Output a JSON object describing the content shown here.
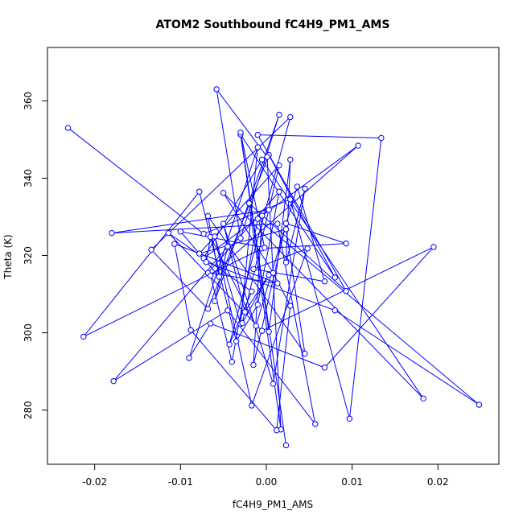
{
  "chart_data": {
    "type": "line",
    "title": "ATOM2 Southbound fC4H9_PM1_AMS",
    "xlabel": "fC4H9_PM1_AMS",
    "ylabel": "Theta (K)",
    "xlim": [
      -0.0255,
      0.0271
    ],
    "ylim": [
      266.0,
      373.8
    ],
    "x_ticks": [
      -0.02,
      -0.01,
      0.0,
      0.01,
      0.02
    ],
    "x_tick_labels": [
      "-0.02",
      "-0.01",
      "0.00",
      "0.01",
      "0.02"
    ],
    "y_ticks": [
      280,
      300,
      320,
      340,
      360
    ],
    "y_tick_labels": [
      "280",
      "300",
      "320",
      "340",
      "360"
    ],
    "grid": false,
    "legend": "none",
    "series_color": "#0000ff",
    "markers": "open-circle",
    "points": [
      {
        "x": -0.0231,
        "y": 353.0
      },
      {
        "x": -0.0058,
        "y": 363.0
      },
      {
        "x": 0.0015,
        "y": 356.4
      },
      {
        "x": 0.0028,
        "y": 355.8
      },
      {
        "x": 0.0134,
        "y": 350.4
      },
      {
        "x": -0.003,
        "y": 351.3
      },
      {
        "x": -0.003,
        "y": 351.8
      },
      {
        "x": -0.001,
        "y": 351.2
      },
      {
        "x": 0.0107,
        "y": 348.4
      },
      {
        "x": -0.001,
        "y": 348.0
      },
      {
        "x": 0.0003,
        "y": 346.0
      },
      {
        "x": 0.0001,
        "y": 345.5
      },
      {
        "x": -0.0005,
        "y": 344.8
      },
      {
        "x": 0.0028,
        "y": 344.8
      },
      {
        "x": 0.0015,
        "y": 343.3
      },
      {
        "x": 0.0036,
        "y": 337.8
      },
      {
        "x": 0.0045,
        "y": 337.3
      },
      {
        "x": 0.0015,
        "y": 336.5
      },
      {
        "x": -0.0078,
        "y": 336.5
      },
      {
        "x": -0.005,
        "y": 336.2
      },
      {
        "x": 0.0028,
        "y": 334.5
      },
      {
        "x": -0.002,
        "y": 333.5
      },
      {
        "x": 0.0003,
        "y": 331.8
      },
      {
        "x": -0.0005,
        "y": 330.3
      },
      {
        "x": -0.001,
        "y": 329.5
      },
      {
        "x": -0.0068,
        "y": 330.2
      },
      {
        "x": 0.0013,
        "y": 328.2
      },
      {
        "x": -0.005,
        "y": 328.2
      },
      {
        "x": 0.0023,
        "y": 328.3
      },
      {
        "x": 0.0023,
        "y": 326.8
      },
      {
        "x": -0.018,
        "y": 325.8
      },
      {
        "x": -0.0114,
        "y": 325.8
      },
      {
        "x": -0.01,
        "y": 326.2
      },
      {
        "x": -0.0073,
        "y": 325.6
      },
      {
        "x": -0.0065,
        "y": 324.8
      },
      {
        "x": -0.006,
        "y": 324.9
      },
      {
        "x": -0.003,
        "y": 324.5
      },
      {
        "x": -0.0107,
        "y": 323.0
      },
      {
        "x": 0.0093,
        "y": 323.1
      },
      {
        "x": 0.0195,
        "y": 322.2
      },
      {
        "x": -0.0045,
        "y": 322.3
      },
      {
        "x": -0.0005,
        "y": 321.8
      },
      {
        "x": -0.0002,
        "y": 322.0
      },
      {
        "x": 0.0048,
        "y": 321.8
      },
      {
        "x": -0.0134,
        "y": 321.5
      },
      {
        "x": -0.0078,
        "y": 320.5
      },
      {
        "x": -0.0073,
        "y": 319.3
      },
      {
        "x": -0.007,
        "y": 318.3
      },
      {
        "x": 0.0023,
        "y": 318.2
      },
      {
        "x": -0.0068,
        "y": 315.5
      },
      {
        "x": -0.0065,
        "y": 314.8
      },
      {
        "x": -0.0015,
        "y": 316.5
      },
      {
        "x": 0.0003,
        "y": 315.0
      },
      {
        "x": 0.0008,
        "y": 315.5
      },
      {
        "x": -0.0055,
        "y": 314.5
      },
      {
        "x": 0.008,
        "y": 314.3
      },
      {
        "x": 0.0068,
        "y": 313.3
      },
      {
        "x": 0.0013,
        "y": 312.8
      },
      {
        "x": 0.0093,
        "y": 310.8
      },
      {
        "x": -0.0017,
        "y": 310.7
      },
      {
        "x": -0.006,
        "y": 308.2
      },
      {
        "x": -0.001,
        "y": 307.3
      },
      {
        "x": 0.0028,
        "y": 307.0
      },
      {
        "x": -0.0068,
        "y": 306.2
      },
      {
        "x": 0.008,
        "y": 305.8
      },
      {
        "x": -0.0045,
        "y": 305.8
      },
      {
        "x": -0.0025,
        "y": 305.4
      },
      {
        "x": -0.003,
        "y": 302.3
      },
      {
        "x": -0.0028,
        "y": 302.5
      },
      {
        "x": -0.0065,
        "y": 302.4
      },
      {
        "x": -0.0012,
        "y": 301.8
      },
      {
        "x": -0.0005,
        "y": 300.5
      },
      {
        "x": 0.0003,
        "y": 300.3
      },
      {
        "x": -0.0088,
        "y": 300.7
      },
      {
        "x": -0.0213,
        "y": 299.0
      },
      {
        "x": -0.0035,
        "y": 297.8
      },
      {
        "x": -0.0043,
        "y": 297.0
      },
      {
        "x": 0.0045,
        "y": 294.6
      },
      {
        "x": -0.009,
        "y": 293.5
      },
      {
        "x": -0.004,
        "y": 292.5
      },
      {
        "x": -0.0015,
        "y": 291.7
      },
      {
        "x": 0.0068,
        "y": 291.0
      },
      {
        "x": -0.0178,
        "y": 287.5
      },
      {
        "x": 0.0008,
        "y": 286.8
      },
      {
        "x": 0.0183,
        "y": 283.0
      },
      {
        "x": 0.0248,
        "y": 281.4
      },
      {
        "x": -0.0017,
        "y": 281.2
      },
      {
        "x": 0.0097,
        "y": 277.8
      },
      {
        "x": 0.0057,
        "y": 276.4
      },
      {
        "x": 0.0017,
        "y": 275.0
      },
      {
        "x": 0.0012,
        "y": 274.8
      },
      {
        "x": 0.0023,
        "y": 270.9
      }
    ],
    "path_order": [
      0,
      33,
      20,
      87,
      4,
      7,
      58,
      21,
      89,
      11,
      1,
      36,
      2,
      60,
      40,
      82,
      65,
      88,
      26,
      30,
      22,
      46,
      12,
      84,
      19,
      53,
      62,
      90,
      73,
      37,
      57,
      49,
      17,
      61,
      75,
      18,
      74,
      41,
      38,
      28,
      80,
      23,
      8,
      50,
      79,
      24,
      85,
      64,
      47,
      34,
      70,
      15,
      56,
      51,
      43,
      86,
      35,
      67,
      9,
      78,
      69,
      81,
      39,
      71,
      31,
      59,
      76,
      3,
      44,
      63,
      10,
      55,
      5,
      72,
      13,
      48,
      16,
      83,
      27,
      66,
      52,
      68,
      14,
      45,
      29,
      77,
      25,
      54,
      32,
      42,
      6,
      91
    ]
  }
}
